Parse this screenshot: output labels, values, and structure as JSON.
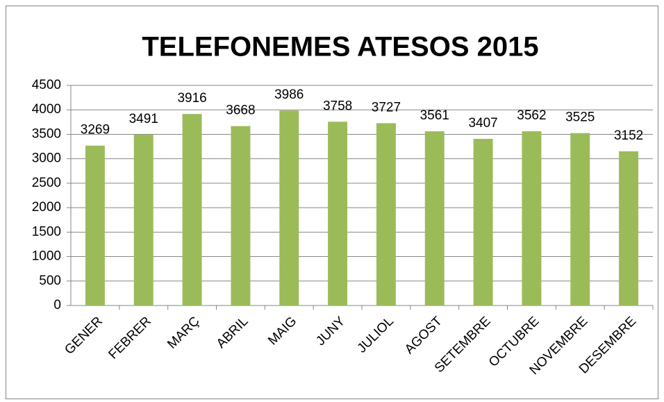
{
  "chart_data": {
    "type": "bar",
    "title": "TELEFONEMES ATESOS 2015",
    "categories": [
      "GENER",
      "FEBRER",
      "MARÇ",
      "ABRIL",
      "MAIG",
      "JUNY",
      "JULIOL",
      "AGOST",
      "SETEMBRE",
      "OCTUBRE",
      "NOVEMBRE",
      "DESEMBRE"
    ],
    "values": [
      3269,
      3491,
      3916,
      3668,
      3986,
      3758,
      3727,
      3561,
      3407,
      3562,
      3525,
      3152
    ],
    "color": "#9bbb59",
    "ylim": [
      0,
      4500
    ],
    "yticks": [
      0,
      500,
      1000,
      1500,
      2000,
      2500,
      3000,
      3500,
      4000,
      4500
    ],
    "grid": true
  }
}
